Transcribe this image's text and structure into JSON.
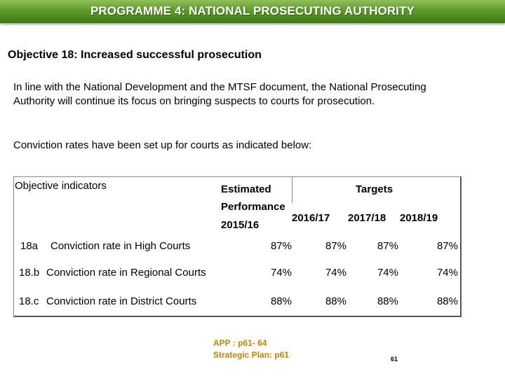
{
  "banner": {
    "title": "PROGRAMME 4: NATIONAL PROSECUTING AUTHORITY"
  },
  "objective": {
    "heading": "Objective 18: Increased successful prosecution"
  },
  "body": {
    "paragraph1": "In line with the National Development and the MTSF document, the National Prosecuting Authority will continue its focus on bringing suspects to courts for prosecution.",
    "paragraph2": "Conviction rates have been set up for courts as indicated below:"
  },
  "table": {
    "header": {
      "indicators": "Objective  indicators",
      "estimated_line1": "Estimated",
      "estimated_line2": "Performance",
      "estimated_line3": "2015/16",
      "targets": "Targets",
      "years": [
        "2016/17",
        "2017/18",
        "2018/19"
      ]
    },
    "rows": [
      {
        "id": "18a",
        "indicator": "Conviction rate in High Courts",
        "values": [
          "87%",
          "87%",
          "87%",
          "87%"
        ]
      },
      {
        "id": "18.b",
        "indicator": "Conviction rate in Regional Courts",
        "values": [
          "74%",
          "74%",
          "74%",
          "74%"
        ]
      },
      {
        "id": "18.c",
        "indicator": "Conviction rate in District Courts",
        "values": [
          "88%",
          "88%",
          "88%",
          "88%"
        ]
      }
    ]
  },
  "footer": {
    "app_ref": "APP : p61- 64",
    "strategic_ref": "Strategic Plan:  p61",
    "page_number": "61"
  }
}
